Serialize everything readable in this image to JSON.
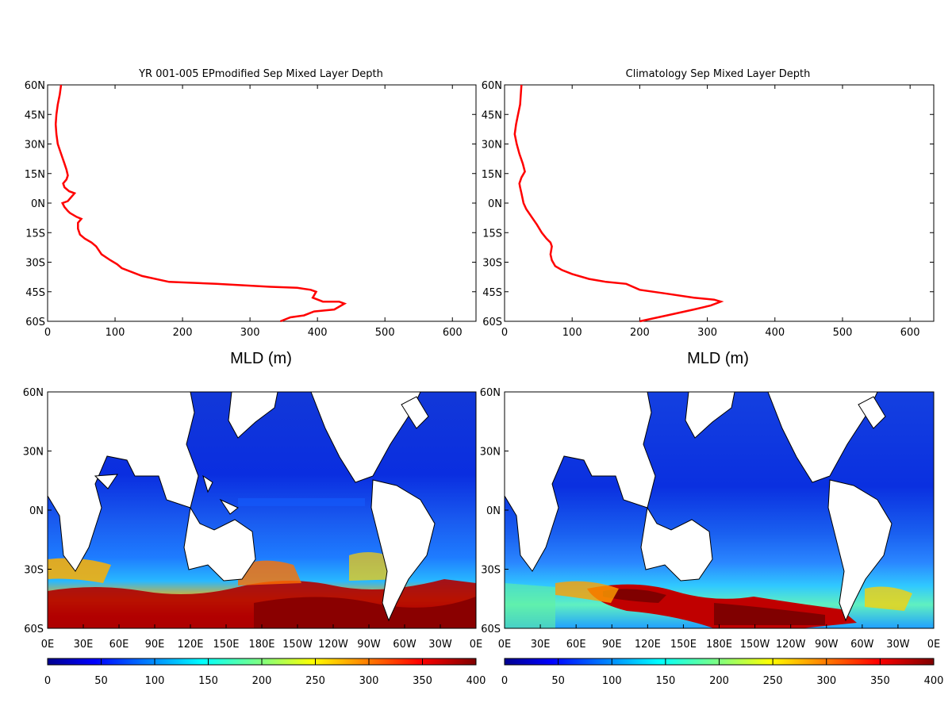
{
  "colors": {
    "profile_line": "#ff0000",
    "frame": "#000000",
    "colormap": [
      "#00008f",
      "#0000ff",
      "#0080ff",
      "#00ffff",
      "#80ff80",
      "#ffff00",
      "#ff8000",
      "#ff0000",
      "#800000"
    ]
  },
  "chart_data": [
    {
      "type": "line",
      "title": "YR 001-005 EPmodified Sep Mixed Layer Depth",
      "xlabel": "MLD (m)",
      "ylabel": "",
      "xlim": [
        0,
        635
      ],
      "ylim": [
        -60,
        60
      ],
      "xticks": [
        "0",
        "100",
        "200",
        "300",
        "400",
        "500",
        "600"
      ],
      "yticks": [
        "60N",
        "45N",
        "30N",
        "15N",
        "0N",
        "15S",
        "30S",
        "45S",
        "60S"
      ],
      "series": [
        {
          "x": [
            345,
            360,
            380,
            395,
            425,
            440,
            432,
            408,
            393,
            398,
            390,
            370,
            330,
            250,
            180,
            140,
            110,
            103,
            93,
            80,
            72,
            65,
            55,
            48,
            45,
            45,
            50,
            43,
            33,
            30,
            25,
            22,
            30,
            40,
            32,
            25,
            23,
            28,
            30,
            28,
            25,
            20,
            15,
            13,
            12,
            13,
            15,
            18,
            20
          ],
          "y": [
            -60,
            -58,
            -57,
            -55,
            -54,
            -51,
            -50,
            -50,
            -48,
            -45,
            -44,
            -43,
            -42.5,
            -41,
            -40,
            -37,
            -33,
            -31,
            -29,
            -26,
            -22,
            -20,
            -18,
            -16,
            -13,
            -10,
            -8,
            -7,
            -5,
            -4,
            -2,
            0,
            1,
            5,
            6,
            8,
            10,
            12,
            14,
            17,
            20,
            25,
            30,
            35,
            40,
            45,
            50,
            55,
            60
          ]
        }
      ]
    },
    {
      "type": "line",
      "title": "Climatology Sep Mixed Layer Depth",
      "xlabel": "MLD (m)",
      "ylabel": "",
      "xlim": [
        0,
        635
      ],
      "ylim": [
        -60,
        60
      ],
      "xticks": [
        "0",
        "100",
        "200",
        "300",
        "400",
        "500",
        "600"
      ],
      "yticks": [
        "60N",
        "45N",
        "30N",
        "15N",
        "0N",
        "15S",
        "30S",
        "45S",
        "60S"
      ],
      "series": [
        {
          "x": [
            200,
            240,
            280,
            305,
            320,
            310,
            280,
            240,
            200,
            180,
            150,
            125,
            100,
            85,
            75,
            70,
            68,
            70,
            68,
            62,
            55,
            48,
            40,
            32,
            28,
            25,
            23,
            22,
            25,
            30,
            27,
            22,
            18,
            15,
            17,
            20,
            23,
            25
          ],
          "y": [
            -60,
            -57,
            -54,
            -52,
            -50,
            -49,
            -48,
            -46,
            -44,
            -41,
            -40,
            -38.5,
            -36,
            -34,
            -32,
            -29,
            -26,
            -22,
            -20,
            -18,
            -15,
            -11,
            -7,
            -3,
            0,
            5,
            8,
            10,
            13,
            16,
            20,
            25,
            30,
            35,
            40,
            45,
            50,
            60
          ]
        }
      ]
    },
    {
      "type": "heatmap",
      "title": "",
      "x_ticks": [
        "0E",
        "30E",
        "60E",
        "90E",
        "120E",
        "150E",
        "180E",
        "150W",
        "120W",
        "90W",
        "60W",
        "30W",
        "0E"
      ],
      "y_ticks": [
        "60N",
        "30N",
        "0N",
        "30S",
        "60S"
      ],
      "colorbar_ticks": [
        "0",
        "50",
        "100",
        "150",
        "200",
        "250",
        "300",
        "350",
        "400"
      ],
      "zlim": [
        0,
        400
      ]
    },
    {
      "type": "heatmap",
      "title": "",
      "x_ticks": [
        "0E",
        "30E",
        "60E",
        "90E",
        "120E",
        "150E",
        "180E",
        "150W",
        "120W",
        "90W",
        "60W",
        "30W",
        "0E"
      ],
      "y_ticks": [
        "60N",
        "30N",
        "0N",
        "30S",
        "60S"
      ],
      "colorbar_ticks": [
        "0",
        "50",
        "100",
        "150",
        "200",
        "250",
        "300",
        "350",
        "400"
      ],
      "zlim": [
        0,
        400
      ]
    }
  ]
}
